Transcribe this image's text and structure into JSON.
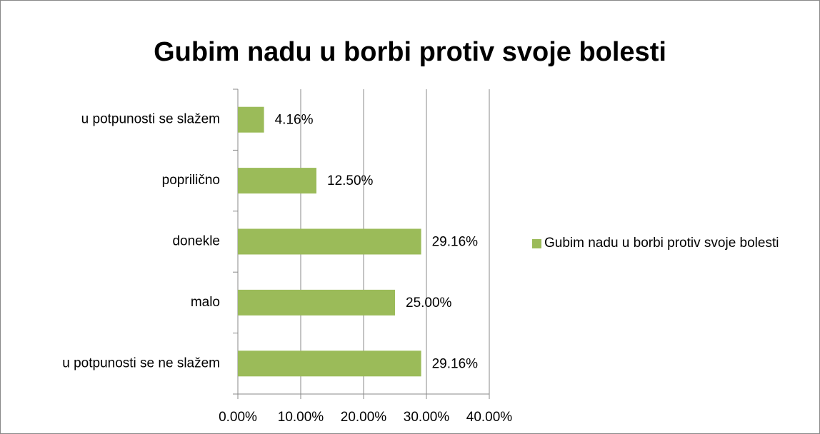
{
  "chart_data": {
    "type": "bar",
    "orientation": "horizontal",
    "title": "Gubim nadu u borbi protiv svoje bolesti",
    "categories": [
      "u potpunosti se slažem",
      "poprilično",
      "donekle",
      "malo",
      "u potpunosti se ne slažem"
    ],
    "series": [
      {
        "name": "Gubim nadu u borbi protiv svoje bolesti",
        "color": "#9bbb59",
        "values": [
          4.16,
          12.5,
          29.16,
          25,
          29.16
        ],
        "value_labels": [
          "4.16%",
          "12.50%",
          "29.16%",
          "25.00%",
          "29.16%"
        ]
      }
    ],
    "xlim": [
      0,
      40
    ],
    "xticks": [
      {
        "value": 0,
        "label": "0.00%"
      },
      {
        "value": 10,
        "label": "10.00%"
      },
      {
        "value": 20,
        "label": "20.00%"
      },
      {
        "value": 30,
        "label": "30.00%"
      },
      {
        "value": 40,
        "label": "40.00%"
      }
    ],
    "grid": true,
    "legend": "right"
  }
}
